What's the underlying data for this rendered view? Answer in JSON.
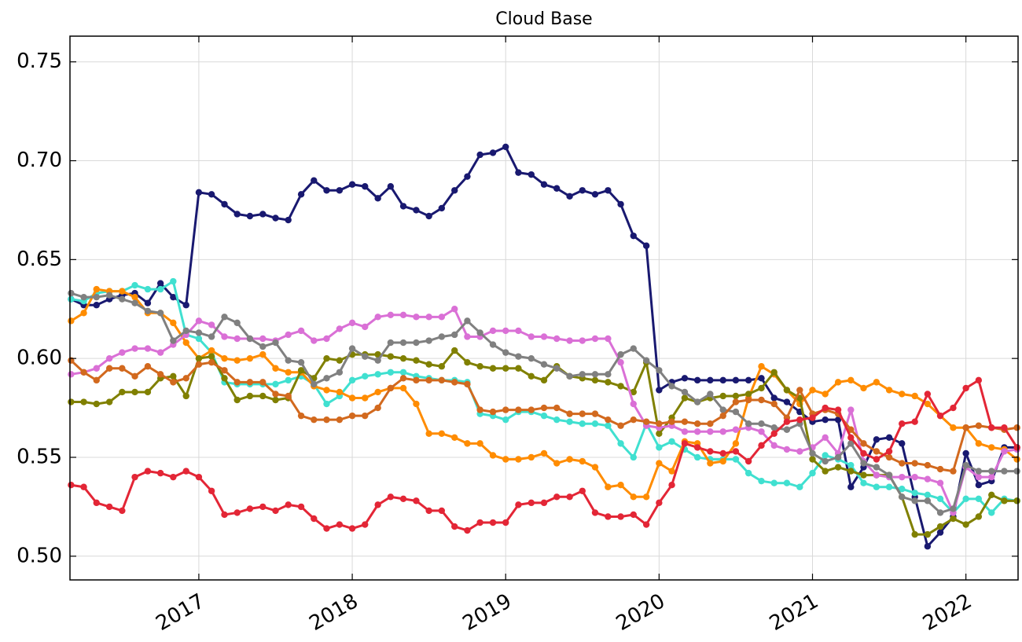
{
  "chart_data": {
    "type": "line",
    "title": "Cloud Base",
    "x": [
      2016.167,
      2016.25,
      2016.333,
      2016.417,
      2016.5,
      2016.583,
      2016.667,
      2016.75,
      2016.833,
      2016.917,
      2017,
      2017.083,
      2017.167,
      2017.25,
      2017.333,
      2017.417,
      2017.5,
      2017.583,
      2017.667,
      2017.75,
      2017.833,
      2017.917,
      2018,
      2018.083,
      2018.167,
      2018.25,
      2018.333,
      2018.417,
      2018.5,
      2018.583,
      2018.667,
      2018.75,
      2018.833,
      2018.917,
      2019,
      2019.083,
      2019.167,
      2019.25,
      2019.333,
      2019.417,
      2019.5,
      2019.583,
      2019.667,
      2019.75,
      2019.833,
      2019.917,
      2020,
      2020.083,
      2020.167,
      2020.25,
      2020.333,
      2020.417,
      2020.5,
      2020.583,
      2020.667,
      2020.75,
      2020.833,
      2020.917,
      2021,
      2021.083,
      2021.167,
      2021.25,
      2021.333,
      2021.417,
      2021.5,
      2021.583,
      2021.667,
      2021.75,
      2021.833,
      2021.917,
      2022,
      2022.083,
      2022.167,
      2022.25,
      2022.333
    ],
    "series": [
      {
        "color": "#191970",
        "values": [
          0.63,
          0.627,
          0.627,
          0.63,
          0.632,
          0.633,
          0.628,
          0.638,
          0.631,
          0.627,
          0.684,
          0.683,
          0.678,
          0.673,
          0.672,
          0.673,
          0.671,
          0.67,
          0.683,
          0.69,
          0.685,
          0.685,
          0.688,
          0.687,
          0.681,
          0.687,
          0.677,
          0.675,
          0.672,
          0.676,
          0.685,
          0.692,
          0.703,
          0.704,
          0.707,
          0.694,
          0.693,
          0.688,
          0.686,
          0.682,
          0.685,
          0.683,
          0.685,
          0.678,
          0.662,
          0.657,
          0.584,
          0.588,
          0.59,
          0.589,
          0.589,
          0.589,
          0.589,
          0.589,
          0.59,
          0.58,
          0.578,
          0.573,
          0.568,
          0.569,
          0.569,
          0.535,
          0.545,
          0.559,
          0.56,
          0.557,
          0.53,
          0.505,
          0.512,
          0.52,
          0.552,
          0.536,
          0.538,
          0.555,
          0.555
        ]
      },
      {
        "color": "#40e0d0",
        "values": [
          0.63,
          0.629,
          0.633,
          0.634,
          0.634,
          0.637,
          0.635,
          0.635,
          0.639,
          0.612,
          0.61,
          0.603,
          0.588,
          0.587,
          0.587,
          0.587,
          0.587,
          0.589,
          0.591,
          0.587,
          0.577,
          0.581,
          0.589,
          0.591,
          0.592,
          0.593,
          0.593,
          0.591,
          0.59,
          0.589,
          0.589,
          0.588,
          0.572,
          0.571,
          0.569,
          0.573,
          0.573,
          0.571,
          0.569,
          0.568,
          0.567,
          0.567,
          0.566,
          0.557,
          0.55,
          0.567,
          0.555,
          0.558,
          0.554,
          0.55,
          0.549,
          0.549,
          0.549,
          0.542,
          0.538,
          0.537,
          0.537,
          0.535,
          0.542,
          0.551,
          0.549,
          0.546,
          0.537,
          0.535,
          0.535,
          0.534,
          0.532,
          0.531,
          0.529,
          0.522,
          0.529,
          0.529,
          0.522,
          0.529,
          0.528
        ]
      },
      {
        "color": "#ff8c00",
        "values": [
          0.619,
          0.623,
          0.635,
          0.634,
          0.634,
          0.631,
          0.623,
          0.623,
          0.618,
          0.608,
          0.6,
          0.604,
          0.6,
          0.599,
          0.6,
          0.602,
          0.595,
          0.593,
          0.593,
          0.586,
          0.584,
          0.583,
          0.58,
          0.58,
          0.583,
          0.585,
          0.585,
          0.577,
          0.562,
          0.562,
          0.56,
          0.557,
          0.557,
          0.551,
          0.549,
          0.549,
          0.55,
          0.552,
          0.547,
          0.549,
          0.548,
          0.545,
          0.535,
          0.536,
          0.53,
          0.53,
          0.547,
          0.543,
          0.558,
          0.557,
          0.547,
          0.548,
          0.557,
          0.58,
          0.596,
          0.592,
          0.584,
          0.577,
          0.584,
          0.582,
          0.588,
          0.589,
          0.585,
          0.588,
          0.584,
          0.582,
          0.581,
          0.577,
          0.571,
          0.565,
          0.565,
          0.557,
          0.555,
          0.554,
          0.549
        ]
      },
      {
        "color": "#808000",
        "values": [
          0.578,
          0.578,
          0.577,
          0.578,
          0.583,
          0.583,
          0.583,
          0.59,
          0.591,
          0.581,
          0.6,
          0.601,
          0.59,
          0.579,
          0.581,
          0.581,
          0.579,
          0.58,
          0.594,
          0.59,
          0.6,
          0.599,
          0.602,
          0.602,
          0.602,
          0.601,
          0.6,
          0.599,
          0.597,
          0.596,
          0.604,
          0.598,
          0.596,
          0.595,
          0.595,
          0.595,
          0.591,
          0.589,
          0.596,
          0.591,
          0.59,
          0.589,
          0.588,
          0.586,
          0.583,
          0.598,
          0.562,
          0.57,
          0.58,
          0.578,
          0.58,
          0.581,
          0.581,
          0.582,
          0.585,
          0.593,
          0.584,
          0.58,
          0.549,
          0.543,
          0.545,
          0.543,
          0.541,
          0.541,
          0.541,
          0.53,
          0.511,
          0.511,
          0.515,
          0.519,
          0.516,
          0.52,
          0.531,
          0.528,
          0.528
        ]
      },
      {
        "color": "#da70d6",
        "values": [
          0.592,
          0.593,
          0.595,
          0.6,
          0.603,
          0.605,
          0.605,
          0.603,
          0.607,
          0.612,
          0.619,
          0.617,
          0.611,
          0.61,
          0.61,
          0.61,
          0.609,
          0.612,
          0.614,
          0.609,
          0.61,
          0.615,
          0.618,
          0.616,
          0.621,
          0.622,
          0.622,
          0.621,
          0.621,
          0.621,
          0.625,
          0.611,
          0.611,
          0.614,
          0.614,
          0.614,
          0.611,
          0.611,
          0.61,
          0.609,
          0.609,
          0.61,
          0.61,
          0.598,
          0.577,
          0.566,
          0.565,
          0.566,
          0.563,
          0.563,
          0.563,
          0.563,
          0.564,
          0.565,
          0.563,
          0.556,
          0.554,
          0.553,
          0.555,
          0.56,
          0.552,
          0.574,
          0.548,
          0.541,
          0.54,
          0.54,
          0.54,
          0.539,
          0.537,
          0.522,
          0.545,
          0.54,
          0.54,
          0.553,
          0.554
        ]
      },
      {
        "color": "#808080",
        "values": [
          0.633,
          0.631,
          0.631,
          0.632,
          0.63,
          0.628,
          0.624,
          0.623,
          0.609,
          0.614,
          0.613,
          0.611,
          0.621,
          0.618,
          0.61,
          0.606,
          0.608,
          0.599,
          0.598,
          0.587,
          0.59,
          0.593,
          0.605,
          0.601,
          0.599,
          0.608,
          0.608,
          0.608,
          0.609,
          0.611,
          0.612,
          0.619,
          0.613,
          0.607,
          0.603,
          0.601,
          0.6,
          0.597,
          0.595,
          0.591,
          0.592,
          0.592,
          0.592,
          0.602,
          0.605,
          0.599,
          0.594,
          0.586,
          0.583,
          0.578,
          0.582,
          0.574,
          0.573,
          0.567,
          0.567,
          0.565,
          0.564,
          0.567,
          0.552,
          0.548,
          0.55,
          0.557,
          0.547,
          0.545,
          0.541,
          0.53,
          0.528,
          0.528,
          0.522,
          0.524,
          0.546,
          0.543,
          0.543,
          0.543,
          0.543
        ]
      },
      {
        "color": "#d2691e",
        "values": [
          0.599,
          0.593,
          0.589,
          0.595,
          0.595,
          0.591,
          0.596,
          0.592,
          0.588,
          0.59,
          0.597,
          0.598,
          0.594,
          0.588,
          0.588,
          0.588,
          0.582,
          0.581,
          0.571,
          0.569,
          0.569,
          0.569,
          0.571,
          0.571,
          0.575,
          0.585,
          0.59,
          0.589,
          0.589,
          0.589,
          0.588,
          0.587,
          0.574,
          0.573,
          0.574,
          0.574,
          0.574,
          0.575,
          0.575,
          0.572,
          0.572,
          0.572,
          0.569,
          0.566,
          0.569,
          0.568,
          0.567,
          0.568,
          0.568,
          0.567,
          0.567,
          0.571,
          0.578,
          0.579,
          0.579,
          0.577,
          0.57,
          0.584,
          0.572,
          0.574,
          0.572,
          0.564,
          0.557,
          0.553,
          0.55,
          0.547,
          0.547,
          0.546,
          0.544,
          0.543,
          0.565,
          0.566,
          0.565,
          0.564,
          0.565
        ]
      },
      {
        "color": "#e32636",
        "values": [
          0.536,
          0.535,
          0.527,
          0.525,
          0.523,
          0.54,
          0.543,
          0.542,
          0.54,
          0.543,
          0.54,
          0.533,
          0.521,
          0.522,
          0.524,
          0.525,
          0.523,
          0.526,
          0.525,
          0.519,
          0.514,
          0.516,
          0.514,
          0.516,
          0.526,
          0.53,
          0.529,
          0.528,
          0.523,
          0.523,
          0.515,
          0.513,
          0.517,
          0.517,
          0.517,
          0.526,
          0.527,
          0.527,
          0.53,
          0.53,
          0.533,
          0.522,
          0.52,
          0.52,
          0.521,
          0.516,
          0.527,
          0.536,
          0.557,
          0.555,
          0.553,
          0.552,
          0.553,
          0.548,
          0.556,
          0.562,
          0.568,
          0.569,
          0.57,
          0.575,
          0.574,
          0.56,
          0.552,
          0.549,
          0.553,
          0.567,
          0.568,
          0.582,
          0.571,
          0.575,
          0.585,
          0.589,
          0.565,
          0.565,
          0.555
        ]
      }
    ],
    "xlim": [
      2016.16,
      2022.34
    ],
    "xticks": [
      2017,
      2018,
      2019,
      2020,
      2021,
      2022
    ],
    "ylim": [
      0.488,
      0.763
    ],
    "yticks": [
      {
        "value": 0.5,
        "label": "0.50"
      },
      0.55,
      {
        "value": 0.6,
        "label": "0.60"
      },
      0.65,
      {
        "value": 0.7,
        "label": "0.70"
      },
      0.75
    ],
    "grid": true
  }
}
